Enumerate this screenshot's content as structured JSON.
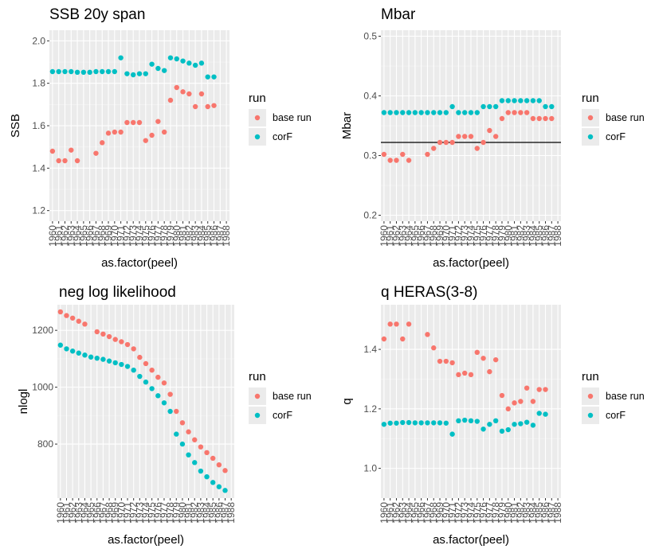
{
  "colors": {
    "base run": "#F8766D",
    "corF": "#00BFC4",
    "panel_bg": "#EBEBEB",
    "grid_major": "#FFFFFF",
    "grid_minor": "#F5F5F5",
    "tick_text": "#4D4D4D",
    "ref_line": "#000000"
  },
  "legend": {
    "title": "run",
    "entries": [
      "base run",
      "corF"
    ]
  },
  "chart_data": [
    {
      "type": "scatter",
      "title": "SSB 20y span",
      "xlabel": "as.factor(peel)",
      "ylabel": "SSB",
      "ylim": [
        1.15,
        2.05
      ],
      "yticks": [
        1.2,
        1.4,
        1.6,
        1.8,
        2.0
      ],
      "ytick_labels": [
        "1.2",
        "1.4",
        "1.6",
        "1.8",
        "2.0"
      ],
      "categories": [
        "1960",
        "1961",
        "1962",
        "1963",
        "1964",
        "1965",
        "1966",
        "1967",
        "1968",
        "1969",
        "1970",
        "1971",
        "1972",
        "1973",
        "1974",
        "1975",
        "1976",
        "1977",
        "1978",
        "1979",
        "1980",
        "1981",
        "1982",
        "1983",
        "1984",
        "1985",
        "1986",
        "1987",
        "1988"
      ],
      "series": [
        {
          "name": "base run",
          "values": [
            1.48,
            1.435,
            1.435,
            1.485,
            1.435,
            null,
            null,
            1.47,
            1.52,
            1.565,
            1.57,
            1.57,
            1.615,
            1.615,
            1.615,
            1.53,
            1.555,
            1.62,
            1.57,
            1.72,
            1.78,
            1.76,
            1.75,
            1.69,
            1.75,
            1.69,
            1.695,
            null,
            null
          ]
        },
        {
          "name": "corF",
          "values": [
            1.855,
            1.855,
            1.855,
            1.855,
            1.852,
            1.852,
            1.852,
            1.855,
            1.855,
            1.855,
            1.855,
            1.92,
            1.845,
            1.84,
            1.845,
            1.845,
            1.89,
            1.87,
            1.86,
            1.92,
            1.915,
            1.905,
            1.895,
            1.885,
            1.895,
            1.83,
            1.83,
            null,
            null
          ]
        }
      ],
      "ref_line": null
    },
    {
      "type": "scatter",
      "title": "Mbar",
      "xlabel": "as.factor(peel)",
      "ylabel": "Mbar",
      "ylim": [
        0.19,
        0.51
      ],
      "yticks": [
        0.2,
        0.3,
        0.4,
        0.5
      ],
      "ytick_labels": [
        "0.2",
        "0.3",
        "0.4",
        "0.5"
      ],
      "categories": [
        "1960",
        "1961",
        "1962",
        "1963",
        "1964",
        "1965",
        "1966",
        "1967",
        "1968",
        "1969",
        "1970",
        "1971",
        "1972",
        "1973",
        "1974",
        "1975",
        "1976",
        "1977",
        "1978",
        "1979",
        "1980",
        "1981",
        "1982",
        "1983",
        "1984",
        "1985",
        "1986",
        "1987",
        "1988"
      ],
      "series": [
        {
          "name": "base run",
          "values": [
            0.302,
            0.292,
            0.292,
            0.302,
            0.292,
            null,
            null,
            0.302,
            0.312,
            0.322,
            0.322,
            0.322,
            0.332,
            0.332,
            0.332,
            0.312,
            0.322,
            0.342,
            0.332,
            0.362,
            0.372,
            0.372,
            0.372,
            0.372,
            0.362,
            0.362,
            0.362,
            0.362,
            null
          ]
        },
        {
          "name": "corF",
          "values": [
            0.372,
            0.372,
            0.372,
            0.372,
            0.372,
            0.372,
            0.372,
            0.372,
            0.372,
            0.372,
            0.372,
            0.382,
            0.372,
            0.372,
            0.372,
            0.372,
            0.382,
            0.382,
            0.382,
            0.392,
            0.392,
            0.392,
            0.392,
            0.392,
            0.392,
            0.392,
            0.382,
            0.382,
            null
          ]
        }
      ],
      "ref_line": {
        "y": 0.322
      }
    },
    {
      "type": "scatter",
      "title": "neg log likelihood",
      "xlabel": "as.factor(peel)",
      "ylabel": "nlogl",
      "ylim": [
        610,
        1290
      ],
      "yticks": [
        800,
        1000,
        1200
      ],
      "ytick_labels": [
        "800",
        "1000",
        "1200"
      ],
      "categories": [
        "1960",
        "1961",
        "1962",
        "1963",
        "1964",
        "1965",
        "1966",
        "1967",
        "1968",
        "1969",
        "1970",
        "1971",
        "1972",
        "1973",
        "1974",
        "1975",
        "1976",
        "1977",
        "1978",
        "1979",
        "1980",
        "1981",
        "1982",
        "1983",
        "1984",
        "1985",
        "1986",
        "1987",
        "1988"
      ],
      "series": [
        {
          "name": "base run",
          "values": [
            1265,
            1252,
            1243,
            1232,
            1222,
            null,
            1195,
            1187,
            1178,
            1168,
            1160,
            1150,
            1135,
            1105,
            1083,
            1060,
            1035,
            1015,
            975,
            915,
            875,
            843,
            815,
            790,
            770,
            750,
            727,
            707,
            null
          ]
        },
        {
          "name": "corF",
          "values": [
            1148,
            1135,
            1127,
            1120,
            1113,
            1106,
            1102,
            1098,
            1092,
            1086,
            1080,
            1073,
            1060,
            1038,
            1018,
            995,
            970,
            945,
            915,
            835,
            800,
            762,
            735,
            705,
            685,
            665,
            650,
            637,
            null
          ]
        }
      ],
      "ref_line": null
    },
    {
      "type": "scatter",
      "title": "q HERAS(3-8)",
      "xlabel": "as.factor(peel)",
      "ylabel": "q",
      "ylim": [
        0.9,
        1.55
      ],
      "yticks": [
        1.0,
        1.2,
        1.4
      ],
      "ytick_labels": [
        "1.0",
        "1.2",
        "1.4"
      ],
      "categories": [
        "1960",
        "1961",
        "1962",
        "1963",
        "1964",
        "1965",
        "1966",
        "1967",
        "1968",
        "1969",
        "1970",
        "1971",
        "1972",
        "1973",
        "1974",
        "1975",
        "1976",
        "1977",
        "1978",
        "1979",
        "1980",
        "1981",
        "1982",
        "1983",
        "1984",
        "1985",
        "1986",
        "1987",
        "1988"
      ],
      "series": [
        {
          "name": "base run",
          "values": [
            1.435,
            1.485,
            1.485,
            1.435,
            1.485,
            null,
            null,
            1.45,
            1.405,
            1.36,
            1.36,
            1.355,
            1.315,
            1.32,
            1.315,
            1.39,
            1.37,
            1.325,
            1.365,
            1.245,
            1.2,
            1.22,
            1.225,
            1.27,
            1.225,
            1.265,
            1.265,
            null,
            null
          ]
        },
        {
          "name": "corF",
          "values": [
            1.148,
            1.152,
            1.152,
            1.154,
            1.154,
            1.153,
            1.153,
            1.153,
            1.153,
            1.153,
            1.152,
            1.115,
            1.16,
            1.162,
            1.16,
            1.158,
            1.132,
            1.148,
            1.16,
            1.125,
            1.13,
            1.148,
            1.15,
            1.155,
            1.145,
            1.185,
            1.182,
            null,
            null
          ]
        }
      ],
      "ref_line": null
    }
  ]
}
